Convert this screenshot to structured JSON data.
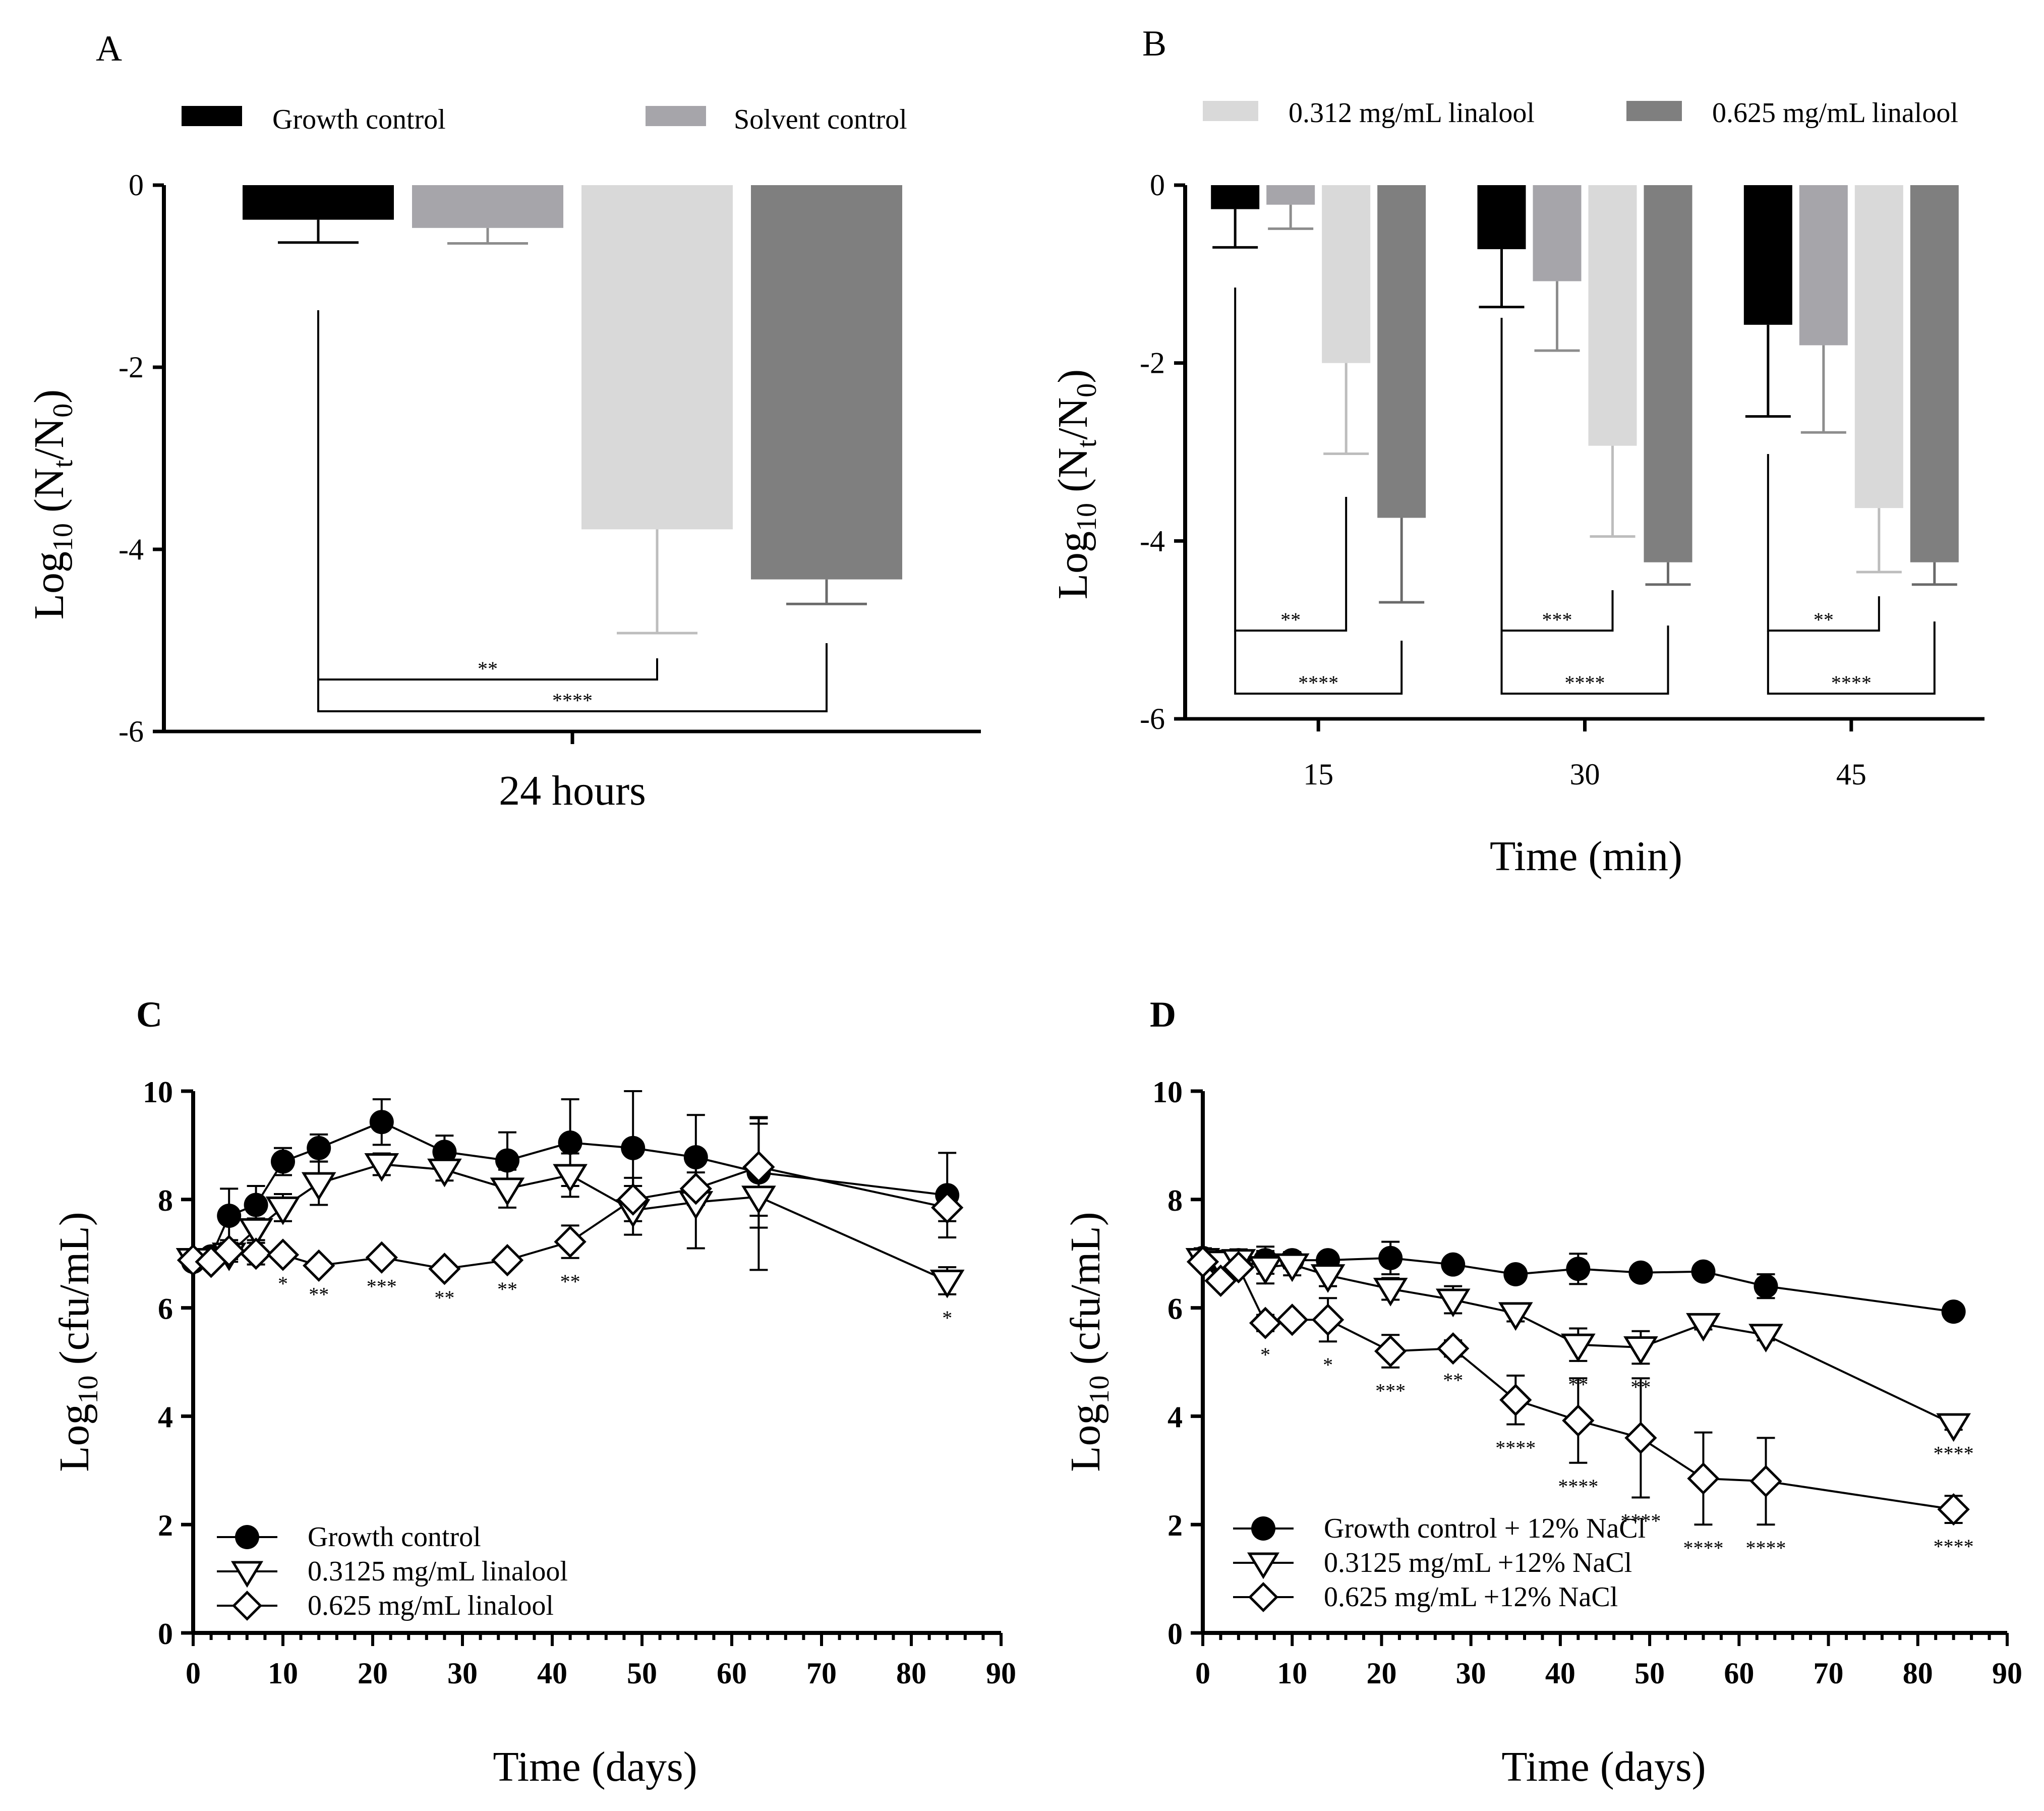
{
  "colors": {
    "growth": "#000000",
    "solvent": "#a6a5aa",
    "lin312": "#d9d9d9",
    "lin625": "#7f7f7f"
  },
  "panelA": {
    "label": "A",
    "legend": [
      {
        "label": "Growth control",
        "color": "#000000"
      },
      {
        "label": "Solvent control",
        "color": "#a6a5aa"
      }
    ],
    "ylabel_main": "Log",
    "ylabel_sub": "10",
    "ylabel_rest": " (N",
    "ylabel_sub2": "t",
    "ylabel_rest2": "/N",
    "ylabel_sub3": "0",
    "ylabel_end": ")",
    "xlabel": "24 hours",
    "chart_data": {
      "type": "bar",
      "title": "",
      "categories": [
        "24 hours"
      ],
      "series": [
        {
          "name": "Growth control",
          "values": [
            -0.38
          ],
          "errors": [
            0.25
          ]
        },
        {
          "name": "Solvent control",
          "values": [
            -0.47
          ],
          "errors": [
            0.17
          ]
        },
        {
          "name": "0.312 mg/mL linalool",
          "values": [
            -3.78
          ],
          "errors": [
            1.14
          ]
        },
        {
          "name": "0.625 mg/mL linalool",
          "values": [
            -4.33
          ],
          "errors": [
            0.27
          ]
        }
      ],
      "ylim": [
        -6,
        0
      ],
      "yticks": [
        0,
        -2,
        -4,
        -6
      ],
      "significance": [
        {
          "pair": [
            "Growth control",
            "0.312 mg/mL linalool"
          ],
          "label": "**"
        },
        {
          "pair": [
            "Growth control",
            "0.625 mg/mL linalool"
          ],
          "label": "****"
        }
      ]
    }
  },
  "panelB": {
    "label": "B",
    "legend": [
      {
        "label": "0.312 mg/mL linalool",
        "color": "#d9d9d9"
      },
      {
        "label": "0.625 mg/mL linalool",
        "color": "#7f7f7f"
      }
    ],
    "xlabel": "Time (min)",
    "chart_data": {
      "type": "bar",
      "categories": [
        "15",
        "30",
        "45"
      ],
      "series": [
        {
          "name": "Growth control",
          "values": [
            -0.27,
            -0.72,
            -1.57
          ],
          "errors": [
            0.43,
            0.65,
            1.03
          ]
        },
        {
          "name": "Solvent control",
          "values": [
            -0.22,
            -1.08,
            -1.8
          ],
          "errors": [
            0.27,
            0.78,
            0.98
          ]
        },
        {
          "name": "0.312 mg/mL linalool",
          "values": [
            -2.0,
            -2.93,
            -3.63
          ],
          "errors": [
            1.02,
            1.02,
            0.72
          ]
        },
        {
          "name": "0.625 mg/mL linalool",
          "values": [
            -3.74,
            -4.24,
            -4.24
          ],
          "errors": [
            0.95,
            0.25,
            0.25
          ]
        }
      ],
      "ylim": [
        -6,
        0
      ],
      "yticks": [
        0,
        -2,
        -4,
        -6
      ],
      "significance": [
        {
          "group": "15",
          "labels": [
            "**",
            "****"
          ]
        },
        {
          "group": "30",
          "labels": [
            "***",
            "****"
          ]
        },
        {
          "group": "45",
          "labels": [
            "**",
            "****"
          ]
        }
      ]
    }
  },
  "panelC": {
    "label": "C",
    "ylabel": "Log",
    "ylabel_sub": "10",
    "ylabel_rest": " (cfu/mL)",
    "xlabel": "Time (days)",
    "legend": [
      {
        "label": "Growth control",
        "marker": "filled-circle"
      },
      {
        "label": "0.3125 mg/mL linalool",
        "marker": "open-triangle-down"
      },
      {
        "label": "0.625 mg/mL linalool",
        "marker": "open-diamond"
      }
    ],
    "chart_data": {
      "type": "line",
      "xlim": [
        0,
        90
      ],
      "ylim": [
        0,
        10
      ],
      "xticks": [
        0,
        10,
        20,
        30,
        40,
        50,
        60,
        70,
        80,
        90
      ],
      "yticks": [
        0,
        2,
        4,
        6,
        8,
        10
      ],
      "series": [
        {
          "name": "Growth control",
          "marker": "filled-circle",
          "x": [
            0,
            2,
            4,
            7,
            10,
            14,
            21,
            28,
            35,
            42,
            49,
            56,
            63,
            84
          ],
          "y": [
            6.85,
            6.95,
            7.7,
            7.9,
            8.7,
            8.95,
            9.43,
            8.88,
            8.72,
            9.05,
            8.95,
            8.78,
            8.5,
            8.08
          ],
          "err": [
            0.1,
            0.1,
            0.5,
            0.35,
            0.25,
            0.25,
            0.42,
            0.3,
            0.52,
            0.8,
            1.05,
            0.78,
            1.02,
            0.78
          ]
        },
        {
          "name": "0.3125 mg/mL linalool",
          "marker": "open-triangle-down",
          "x": [
            0,
            2,
            4,
            7,
            10,
            14,
            21,
            28,
            35,
            42,
            49,
            56,
            63,
            84
          ],
          "y": [
            6.9,
            6.9,
            7.0,
            7.45,
            7.85,
            8.3,
            8.65,
            8.55,
            8.2,
            8.45,
            7.8,
            7.95,
            8.05,
            6.5
          ],
          "err": [
            0.1,
            0.1,
            0.1,
            0.2,
            0.25,
            0.4,
            0.2,
            0.2,
            0.35,
            0.4,
            0.45,
            0.85,
            1.35,
            0.25
          ],
          "sig": [
            null,
            null,
            null,
            null,
            null,
            null,
            null,
            null,
            null,
            null,
            null,
            null,
            null,
            "*"
          ]
        },
        {
          "name": "0.625 mg/mL linalool",
          "marker": "open-diamond",
          "x": [
            0,
            2,
            4,
            7,
            10,
            14,
            21,
            28,
            35,
            42,
            49,
            56,
            63,
            84
          ],
          "y": [
            6.88,
            6.85,
            7.05,
            7.0,
            6.98,
            6.78,
            6.93,
            6.72,
            6.88,
            7.22,
            8.0,
            8.2,
            8.6,
            7.85
          ],
          "err": [
            0.1,
            0.1,
            0.2,
            0.2,
            0.1,
            0.1,
            0.1,
            0.1,
            0.1,
            0.3,
            0.4,
            0.3,
            0.9,
            0.25
          ],
          "sig": [
            null,
            null,
            null,
            null,
            "*",
            "**",
            "***",
            "**",
            "**",
            "**",
            null,
            null,
            null,
            null
          ]
        }
      ]
    }
  },
  "panelD": {
    "label": "D",
    "xlabel": "Time (days)",
    "legend": [
      {
        "label": "Growth control + 12% NaCl",
        "marker": "filled-circle"
      },
      {
        "label": "0.3125 mg/mL +12% NaCl",
        "marker": "open-triangle-down"
      },
      {
        "label": "0.625 mg/mL +12% NaCl",
        "marker": "open-diamond"
      }
    ],
    "chart_data": {
      "type": "line",
      "xlim": [
        0,
        90
      ],
      "ylim": [
        0,
        10
      ],
      "xticks": [
        0,
        10,
        20,
        30,
        40,
        50,
        60,
        70,
        80,
        90
      ],
      "yticks": [
        0,
        2,
        4,
        6,
        8,
        10
      ],
      "series": [
        {
          "name": "Growth control + 12% NaCl",
          "marker": "filled-circle",
          "x": [
            0,
            2,
            4,
            7,
            10,
            14,
            21,
            28,
            35,
            42,
            49,
            56,
            63,
            84
          ],
          "y": [
            6.92,
            6.85,
            6.88,
            6.88,
            6.88,
            6.88,
            6.92,
            6.8,
            6.62,
            6.72,
            6.65,
            6.67,
            6.4,
            5.93
          ],
          "err": [
            0.18,
            0.15,
            0.15,
            0.25,
            0.15,
            0.1,
            0.3,
            0.1,
            0.1,
            0.28,
            0.1,
            0.1,
            0.22,
            0.05
          ]
        },
        {
          "name": "0.3125 mg/mL +12% NaCl",
          "marker": "open-triangle-down",
          "x": [
            0,
            2,
            4,
            7,
            10,
            14,
            21,
            28,
            35,
            42,
            49,
            56,
            63,
            84
          ],
          "y": [
            6.9,
            6.85,
            6.88,
            6.75,
            6.8,
            6.6,
            6.35,
            6.15,
            5.9,
            5.32,
            5.27,
            5.7,
            5.5,
            3.85
          ],
          "err": [
            0.1,
            0.15,
            0.2,
            0.3,
            0.2,
            0.2,
            0.2,
            0.25,
            0.15,
            0.3,
            0.3,
            0.1,
            0.1,
            0.1
          ],
          "sig": [
            null,
            null,
            null,
            null,
            null,
            null,
            null,
            null,
            null,
            "**",
            "**",
            null,
            null,
            "****"
          ]
        },
        {
          "name": "0.625 mg/mL +12% NaCl",
          "marker": "open-diamond",
          "x": [
            0,
            2,
            4,
            7,
            10,
            14,
            21,
            28,
            35,
            42,
            49,
            56,
            63,
            84
          ],
          "y": [
            6.85,
            6.5,
            6.75,
            5.72,
            5.78,
            5.78,
            5.2,
            5.25,
            4.3,
            3.92,
            3.6,
            2.85,
            2.8,
            2.28
          ],
          "err": [
            0.1,
            0.1,
            0.1,
            0.15,
            0.1,
            0.4,
            0.3,
            0.15,
            0.45,
            0.78,
            1.1,
            0.85,
            0.8,
            0.25
          ],
          "sig": [
            null,
            null,
            null,
            "*",
            null,
            "*",
            "***",
            "**",
            "****",
            "****",
            "****",
            "****",
            "****",
            "****"
          ]
        }
      ]
    }
  }
}
